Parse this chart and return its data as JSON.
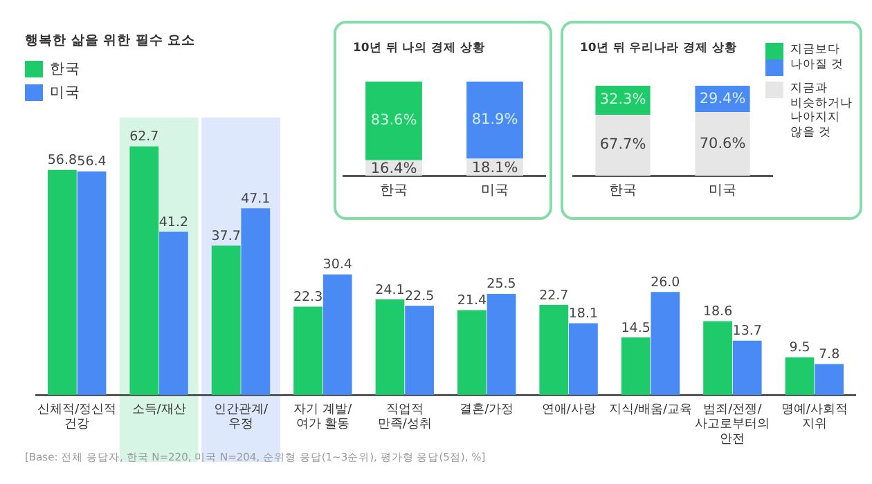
{
  "chart_data": [
    {
      "type": "bar",
      "title": "행복한 삶을 위한 필수 요소",
      "categories": [
        "신체적/정신적\n건강",
        "소득/재산",
        "인간관계/\n우정",
        "자기 계발/\n여가 활동",
        "직업적\n만족/성취",
        "결혼/가정",
        "연애/사랑",
        "지식/배움/교육",
        "범죄/전쟁/\n사고로부터의\n안전",
        "명예/사회적\n지위"
      ],
      "series": [
        {
          "name": "한국",
          "color": "#1fca6b",
          "values": [
            56.8,
            62.7,
            37.7,
            22.3,
            24.1,
            21.4,
            22.7,
            14.5,
            18.6,
            9.5
          ],
          "value_labels": [
            "56.8",
            "62.7",
            "37.7",
            "22.3",
            "24.1",
            "21.4",
            "22.7",
            "14.5",
            "18.6",
            "9.5"
          ]
        },
        {
          "name": "미국",
          "color": "#4a8af4",
          "values": [
            56.4,
            41.2,
            47.1,
            30.4,
            22.5,
            25.5,
            18.1,
            26.0,
            13.7,
            7.8
          ],
          "value_labels": [
            "56.4",
            "41.2",
            "47.1",
            "30.4",
            "22.5",
            "25.5",
            "18.1",
            "26.0",
            "13.7",
            "7.8"
          ]
        }
      ],
      "grid": false,
      "legend": "top left",
      "tick_labels": "x",
      "bands": [
        {
          "axis": "x",
          "from": "소득/재산",
          "to": "소득/재산",
          "color": "#d6f5e4"
        },
        {
          "axis": "x",
          "from": "인간관계/\n우정",
          "to": "인간관계/\n우정",
          "color": "#dde8fc"
        }
      ],
      "annotations": [
        "[Base: 전체 응답자, 한국 N=220, 미국 N=204, 순위형 응답(1~3순위), 평가형 응답(5점), %]"
      ]
    },
    {
      "type": "bar",
      "title": "10년 뒤 나의 경제 상황",
      "categories": [
        "한국",
        "미국"
      ],
      "stacked": true,
      "series": [
        {
          "color": "#e6e6e6",
          "values": [
            16.4,
            18.1
          ],
          "value_labels": [
            "16.4%",
            "18.1%"
          ]
        },
        {
          "colors": [
            "#1fca6b",
            "#4a8af4"
          ],
          "values": [
            83.6,
            81.9
          ],
          "value_labels": [
            "83.6%",
            "81.9%"
          ]
        }
      ],
      "ylim": [
        0,
        100
      ],
      "grid": false,
      "tick_labels": "x"
    },
    {
      "type": "bar",
      "title": "10년 뒤 우리나라 경제 상황",
      "categories": [
        "한국",
        "미국"
      ],
      "stacked": true,
      "series": [
        {
          "name": "지금과 비슷하거나 나아지지 않을 것",
          "color": "#e6e6e6",
          "values": [
            67.7,
            70.6
          ],
          "value_labels": [
            "67.7%",
            "70.6%"
          ]
        },
        {
          "name": "지금보다 나아질 것",
          "colors": [
            "#1fca6b",
            "#4a8af4"
          ],
          "values": [
            32.3,
            29.4
          ],
          "value_labels": [
            "32.3%",
            "29.4%"
          ]
        }
      ],
      "ylim": [
        0,
        100
      ],
      "grid": false,
      "tick_labels": "x",
      "legend": "right"
    }
  ]
}
